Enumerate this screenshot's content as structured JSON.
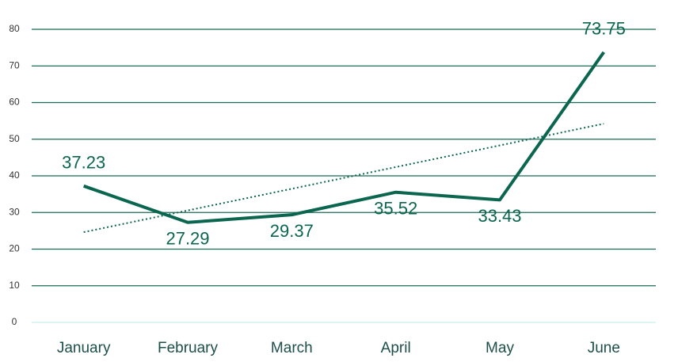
{
  "chart_data": {
    "type": "line",
    "categories": [
      "January",
      "February",
      "March",
      "April",
      "May",
      "June"
    ],
    "series": [
      {
        "color": "#0b6650",
        "values": [
          37.23,
          27.29,
          29.37,
          35.52,
          33.43,
          73.75
        ]
      }
    ],
    "ylim": [
      0,
      80
    ],
    "yticks": [
      0,
      10,
      20,
      30,
      40,
      50,
      60,
      70,
      80
    ],
    "grid": true,
    "trendline": "linear",
    "data_labels": true
  }
}
